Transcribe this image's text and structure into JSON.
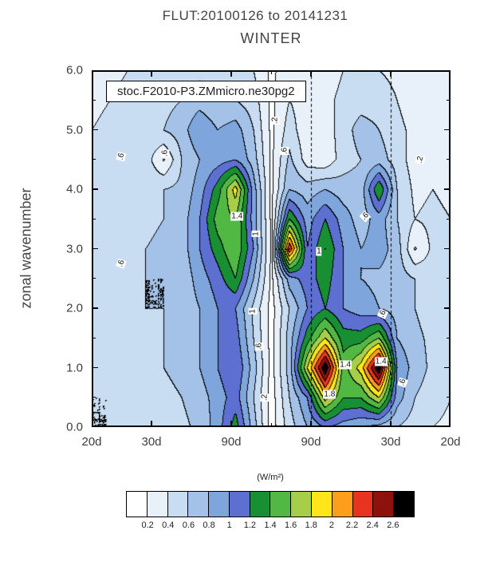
{
  "chart_data": {
    "type": "filled_contour",
    "title": "FLUT:20100126 to 20141231",
    "subtitle": "WINTER",
    "box_label": "stoc.F2010-P3.ZMmicro.ne30pg2",
    "ylabel": "zonal wavenumber",
    "xlabel": "",
    "colorbar_units": "(W/m²)",
    "colorbar_tick_labels": [
      "0.2",
      "0.4",
      "0.6",
      "0.8",
      "1",
      "1.2",
      "1.4",
      "1.6",
      "1.8",
      "2",
      "2.2",
      "2.4",
      "2.6"
    ],
    "contour_levels": [
      0.2,
      0.4,
      0.6,
      0.8,
      1.0,
      1.2,
      1.4,
      1.6,
      1.8,
      2.0,
      2.2,
      2.4,
      2.6
    ],
    "fill_colors": [
      "#ffffff",
      "#e8f1fa",
      "#c8dcf2",
      "#a4c2e8",
      "#7ea6dd",
      "#5d6fd1",
      "#188f33",
      "#52b844",
      "#a6ce48",
      "#ffe51a",
      "#ff9d1c",
      "#e8331f",
      "#8c120b",
      "#000000"
    ],
    "x_range_cpd": [
      -0.05,
      0.05
    ],
    "y_range": [
      0,
      6
    ],
    "x_axis_ticks": [
      {
        "freq": -0.05,
        "label": "20d"
      },
      {
        "freq": -0.033333,
        "label": "30d"
      },
      {
        "freq": -0.011111,
        "label": "90d"
      },
      {
        "freq": 0.011111,
        "label": "90d"
      },
      {
        "freq": 0.033333,
        "label": "30d"
      },
      {
        "freq": 0.05,
        "label": "20d"
      }
    ],
    "y_axis_ticks": [
      {
        "value": 0,
        "label": "0.0"
      },
      {
        "value": 1,
        "label": "1.0"
      },
      {
        "value": 2,
        "label": "2.0"
      },
      {
        "value": 3,
        "label": "3.0"
      },
      {
        "value": 4,
        "label": "4.0"
      },
      {
        "value": 5,
        "label": "5.0"
      },
      {
        "value": 6,
        "label": "6.0"
      }
    ],
    "y_minor_tick_step": 0.5,
    "dashed_line_freqs": [
      0.011111,
      0.033333
    ],
    "x_frequencies": [
      -0.05,
      -0.045,
      -0.04,
      -0.035,
      -0.03,
      -0.025,
      -0.02,
      -0.015,
      -0.01,
      -0.005,
      0.0,
      0.005,
      0.01,
      0.015,
      0.02,
      0.025,
      0.03,
      0.035,
      0.04,
      0.045,
      0.05
    ],
    "y_wavenumbers": [
      0,
      0.5,
      1,
      1.5,
      2,
      2.5,
      3,
      3.5,
      4,
      4.5,
      5,
      5.5,
      6
    ],
    "values": [
      [
        0.4,
        0.4,
        0.45,
        0.5,
        0.5,
        0.55,
        0.65,
        0.9,
        1.3,
        0.7,
        0.1,
        0.5,
        0.8,
        1.0,
        0.9,
        0.8,
        0.7,
        0.6,
        0.5,
        0.4,
        0.35
      ],
      [
        0.4,
        0.4,
        0.45,
        0.5,
        0.55,
        0.6,
        0.7,
        0.9,
        1.1,
        0.6,
        0.1,
        0.6,
        1.0,
        1.9,
        1.4,
        1.4,
        1.8,
        0.9,
        0.6,
        0.5,
        0.4
      ],
      [
        0.45,
        0.45,
        0.5,
        0.55,
        0.6,
        0.65,
        0.8,
        1.0,
        1.2,
        0.7,
        0.12,
        0.7,
        1.8,
        2.8,
        1.5,
        1.9,
        2.8,
        1.0,
        0.7,
        0.55,
        0.45
      ],
      [
        0.45,
        0.5,
        0.5,
        0.55,
        0.6,
        0.65,
        0.8,
        1.0,
        1.1,
        0.6,
        0.12,
        0.7,
        1.3,
        1.8,
        1.3,
        1.3,
        1.6,
        0.8,
        0.65,
        0.55,
        0.45
      ],
      [
        0.45,
        0.5,
        0.55,
        0.6,
        0.6,
        0.65,
        0.8,
        1.0,
        1.0,
        0.55,
        0.12,
        0.6,
        1.0,
        1.2,
        1.0,
        0.9,
        0.8,
        0.7,
        0.6,
        0.5,
        0.45
      ],
      [
        0.45,
        0.5,
        0.55,
        0.6,
        0.6,
        0.65,
        0.9,
        1.1,
        1.4,
        0.8,
        0.15,
        0.9,
        1.1,
        1.3,
        1.0,
        0.8,
        0.75,
        0.7,
        0.6,
        0.5,
        0.4
      ],
      [
        0.45,
        0.5,
        0.55,
        0.6,
        0.65,
        0.7,
        1.0,
        1.3,
        1.6,
        1.0,
        0.15,
        2.4,
        1.0,
        1.4,
        1.0,
        0.8,
        0.9,
        0.7,
        0.18,
        0.45,
        0.4
      ],
      [
        0.45,
        0.5,
        0.5,
        0.55,
        0.6,
        0.7,
        1.0,
        1.5,
        1.6,
        0.9,
        0.15,
        1.4,
        0.9,
        1.2,
        0.9,
        0.7,
        0.9,
        0.6,
        0.4,
        0.45,
        0.4
      ],
      [
        0.4,
        0.45,
        0.5,
        0.55,
        0.6,
        0.65,
        0.9,
        1.3,
        1.9,
        0.9,
        0.15,
        0.8,
        0.7,
        0.8,
        0.7,
        0.7,
        1.4,
        0.6,
        0.35,
        0.4,
        0.35
      ],
      [
        0.4,
        0.45,
        0.5,
        0.5,
        0.18,
        0.6,
        0.8,
        0.9,
        1.0,
        0.7,
        0.15,
        0.65,
        0.3,
        0.25,
        0.5,
        0.6,
        0.7,
        0.5,
        0.3,
        0.35,
        0.35
      ],
      [
        0.4,
        0.45,
        0.5,
        0.55,
        0.6,
        0.7,
        1.0,
        0.8,
        0.9,
        0.6,
        0.15,
        0.5,
        0.25,
        0.3,
        0.5,
        0.7,
        0.6,
        0.45,
        0.35,
        0.3,
        0.3
      ],
      [
        0.35,
        0.4,
        0.45,
        0.5,
        0.55,
        0.6,
        0.7,
        0.6,
        0.6,
        0.5,
        0.15,
        0.4,
        0.3,
        0.35,
        0.45,
        0.5,
        0.5,
        0.4,
        0.3,
        0.3,
        0.3
      ],
      [
        0.3,
        0.35,
        0.4,
        0.45,
        0.5,
        0.5,
        0.55,
        0.5,
        0.5,
        0.4,
        0.15,
        0.35,
        0.3,
        0.3,
        0.4,
        0.45,
        0.4,
        0.35,
        0.3,
        0.25,
        0.25
      ]
    ],
    "contour_labels": [
      {
        "freq": -0.0418,
        "wavenumber": 4.55,
        "text": ".6",
        "rot": 75
      },
      {
        "freq": -0.0418,
        "wavenumber": 2.75,
        "text": ".6",
        "rot": 70
      },
      {
        "freq": -0.0295,
        "wavenumber": 4.6,
        "text": ".6",
        "rot": 90
      },
      {
        "freq": -0.0095,
        "wavenumber": 3.55,
        "text": "1.4",
        "rot": 0
      },
      {
        "freq": -0.0042,
        "wavenumber": 3.25,
        "text": "1",
        "rot": 90
      },
      {
        "freq": -0.0051,
        "wavenumber": 1.95,
        "text": "1",
        "rot": 90
      },
      {
        "freq": -0.0033,
        "wavenumber": 1.35,
        "text": ".6",
        "rot": 90
      },
      {
        "freq": 0.0011,
        "wavenumber": 5.15,
        "text": ".2",
        "rot": 90
      },
      {
        "freq": 0.0038,
        "wavenumber": 4.65,
        "text": ".6",
        "rot": 90
      },
      {
        "freq": 0.0133,
        "wavenumber": 2.95,
        "text": "1",
        "rot": 0
      },
      {
        "freq": 0.0207,
        "wavenumber": 1.05,
        "text": "1.4",
        "rot": 0
      },
      {
        "freq": 0.0306,
        "wavenumber": 1.1,
        "text": "1.4",
        "rot": 0
      },
      {
        "freq": 0.0163,
        "wavenumber": 0.55,
        "text": "1.8",
        "rot": 0
      },
      {
        "freq": -0.0017,
        "wavenumber": 0.5,
        "text": ".2",
        "rot": 90
      },
      {
        "freq": 0.0416,
        "wavenumber": 4.5,
        "text": ".2",
        "rot": 75
      },
      {
        "freq": 0.0262,
        "wavenumber": 3.55,
        "text": ".6",
        "rot": 45
      },
      {
        "freq": 0.0311,
        "wavenumber": 1.9,
        "text": ".6",
        "rot": 65
      },
      {
        "freq": 0.0367,
        "wavenumber": 0.75,
        "text": ".6",
        "rot": 70
      }
    ]
  }
}
